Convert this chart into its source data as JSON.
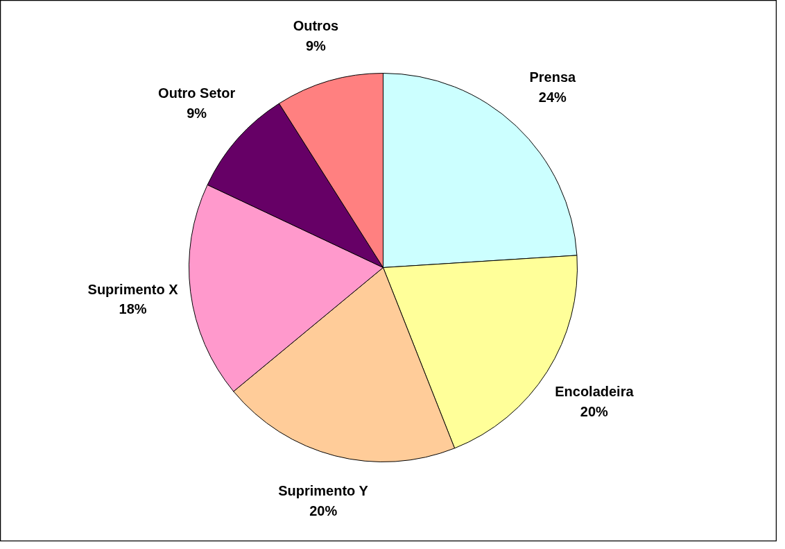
{
  "chart_data": {
    "type": "pie",
    "categories": [
      "Prensa",
      "Encoladeira",
      "Suprimento Y",
      "Suprimento X",
      "Outro Setor",
      "Outros"
    ],
    "values": [
      24,
      20,
      20,
      18,
      9,
      9
    ],
    "value_labels": [
      "24%",
      "20%",
      "20%",
      "18%",
      "9%",
      "9%"
    ],
    "colors": [
      "#ccffff",
      "#ffff99",
      "#ffcc99",
      "#ff99cc",
      "#660066",
      "#ff8080"
    ],
    "legend": false
  }
}
